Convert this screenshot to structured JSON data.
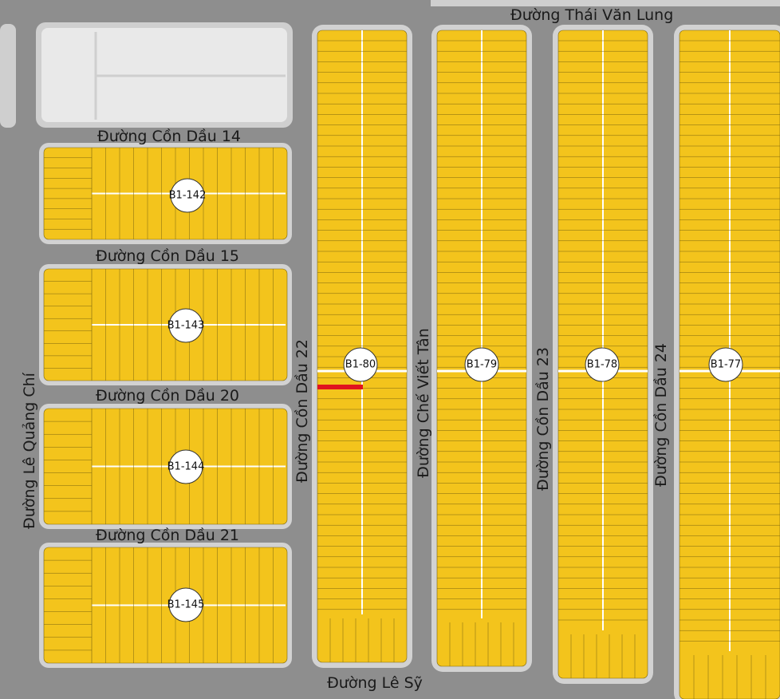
{
  "streets": [
    {
      "label": "Đường Thái Văn Lung"
    },
    {
      "label": "Đường Cồn Dầu 14"
    },
    {
      "label": "Đường Cồn Dầu 15"
    },
    {
      "label": "Đường Cồn Dầu 20"
    },
    {
      "label": "Đường Cồn Dầu 21"
    },
    {
      "label": "Đường Lê Sỹ"
    },
    {
      "label": "Đường Lê Quảng Chí"
    },
    {
      "label": "Đường Cồn Dầu 22"
    },
    {
      "label": "Đường Chế Viết Tân"
    },
    {
      "label": "Đường Cồn Dầu 23"
    },
    {
      "label": "Đường Cồn Dầu 24"
    }
  ],
  "blocks": [
    {
      "label": "B1-142"
    },
    {
      "label": "B1-143"
    },
    {
      "label": "B1-144"
    },
    {
      "label": "B1-145"
    },
    {
      "label": "B1-80"
    },
    {
      "label": "B1-79"
    },
    {
      "label": "B1-78"
    },
    {
      "label": "B1-77"
    }
  ]
}
